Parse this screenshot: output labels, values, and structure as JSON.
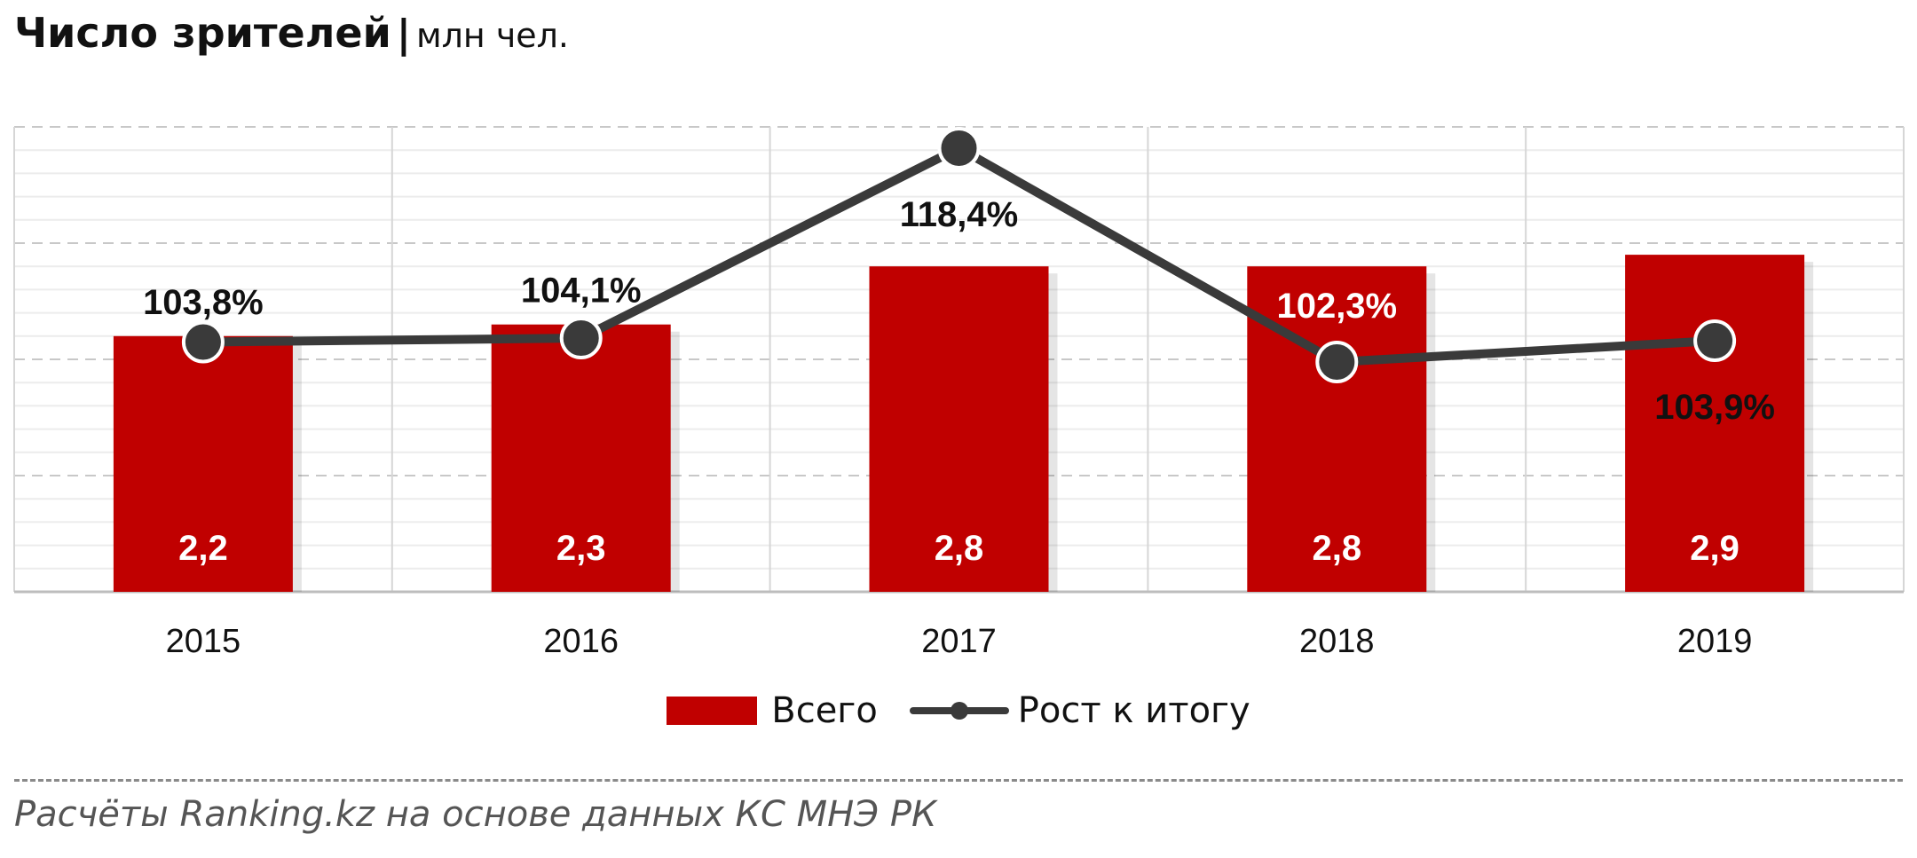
{
  "title": {
    "main": "Число зрителей",
    "separator": "|",
    "unit": "млн чел."
  },
  "chart_data": {
    "type": "bar",
    "categories": [
      "2015",
      "2016",
      "2017",
      "2018",
      "2019"
    ],
    "series": [
      {
        "name": "Всего",
        "type": "bar",
        "values": [
          2.2,
          2.3,
          2.8,
          2.8,
          2.9
        ],
        "labels": [
          "2,2",
          "2,3",
          "2,8",
          "2,8",
          "2,9"
        ],
        "color": "#C00000"
      },
      {
        "name": "Рост к итогу",
        "type": "line",
        "values": [
          103.8,
          104.1,
          118.4,
          102.3,
          103.9
        ],
        "labels": [
          "103,8%",
          "104,1%",
          "118,4%",
          "102,3%",
          "103,9%"
        ],
        "color": "#3A3A3A"
      }
    ],
    "bar_ylim": [
      0,
      4
    ],
    "line_ylim": [
      85,
      120
    ],
    "grid": true,
    "legend": "bottom"
  },
  "legend": {
    "bars_label": "Всего",
    "line_label": "Рост к итогу"
  },
  "source": "Расчёты Ranking.kz на основе данных  КС МНЭ РК"
}
